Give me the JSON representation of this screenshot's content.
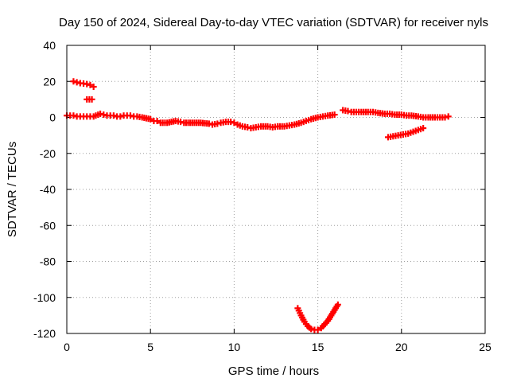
{
  "chart_data": {
    "type": "scatter",
    "title": "Day 150 of 2024, Sidereal Day-to-day VTEC variation (SDTVAR) for receiver nyls",
    "xlabel": "GPS time / hours",
    "ylabel": "SDTVAR / TECUs",
    "xlim": [
      0,
      25
    ],
    "ylim": [
      -120,
      40
    ],
    "xticks": [
      0,
      5,
      10,
      15,
      20,
      25
    ],
    "yticks": [
      -120,
      -100,
      -80,
      -60,
      -40,
      -20,
      0,
      20,
      40
    ],
    "grid": true,
    "marker": "plus",
    "color": "#ff0000",
    "series": [
      {
        "name": "high arc",
        "x": [
          0.4,
          0.6,
          0.8,
          1.0,
          1.2,
          1.4,
          1.6
        ],
        "y": [
          20,
          19.5,
          19,
          18.8,
          18.5,
          18,
          17
        ]
      },
      {
        "name": "short arc",
        "x": [
          1.2,
          1.35,
          1.5
        ],
        "y": [
          10,
          10,
          10
        ]
      },
      {
        "name": "main track",
        "x": [
          0.0,
          0.2,
          0.4,
          0.6,
          0.8,
          1.0,
          1.2,
          1.4,
          1.6,
          2.0,
          2.2,
          2.4,
          2.6,
          2.8,
          3.0,
          3.2,
          3.4,
          3.6,
          3.8,
          4.0,
          4.2,
          4.5,
          5.0,
          5.2,
          5.4,
          5.6,
          6.0,
          6.5,
          6.8,
          7.0,
          7.5,
          8.0,
          8.5,
          8.7,
          9.0,
          9.2,
          9.5,
          9.8,
          10.0,
          10.2,
          10.5,
          10.8,
          11.0,
          11.3,
          11.6,
          12.0,
          12.3,
          12.6,
          13.0,
          13.3,
          13.6,
          14.0,
          14.3,
          14.6,
          15.0,
          15.3,
          15.6,
          16.0
        ],
        "y": [
          1,
          1,
          1,
          0.5,
          0.5,
          0.5,
          0.5,
          0.5,
          0.5,
          2,
          1.5,
          1,
          1,
          1,
          0.5,
          0.5,
          1,
          1,
          1,
          0.5,
          0.5,
          0,
          -1,
          -2,
          -2,
          -3,
          -3,
          -2,
          -2.5,
          -3,
          -3,
          -3,
          -3.5,
          -4,
          -3.5,
          -3,
          -2.5,
          -2.5,
          -3,
          -4,
          -5,
          -5.5,
          -6,
          -5.5,
          -5,
          -5,
          -5.5,
          -5,
          -5,
          -4.5,
          -4,
          -3,
          -2,
          -1,
          0,
          0.5,
          1,
          1.5
        ]
      },
      {
        "name": "v dip",
        "x": [
          13.8,
          14.0,
          14.2,
          14.4,
          14.6,
          14.8,
          15.0,
          15.2,
          15.4,
          15.6,
          15.8,
          16.0,
          16.2
        ],
        "y": [
          -106,
          -110,
          -113.5,
          -116,
          -117.5,
          -118,
          -118,
          -117,
          -115,
          -113,
          -110,
          -107,
          -104
        ]
      },
      {
        "name": "late track",
        "x": [
          16.5,
          16.8,
          17.0,
          17.3,
          17.6,
          18.0,
          18.3,
          18.6,
          19.0,
          19.3,
          19.6,
          20.0,
          20.3,
          20.6,
          21.0,
          21.3,
          21.6,
          22.0,
          22.3,
          22.6,
          22.8
        ],
        "y": [
          4,
          3.5,
          3,
          3,
          3,
          3,
          3,
          2.5,
          2,
          2,
          1.5,
          1.5,
          1,
          1,
          0.5,
          0,
          0,
          0,
          0,
          0,
          0.5
        ]
      },
      {
        "name": "lower late arc",
        "x": [
          19.2,
          19.5,
          19.8,
          20.1,
          20.4,
          20.7,
          21.0,
          21.3
        ],
        "y": [
          -11,
          -10.5,
          -10,
          -9.5,
          -9,
          -8,
          -7,
          -6
        ]
      }
    ]
  }
}
